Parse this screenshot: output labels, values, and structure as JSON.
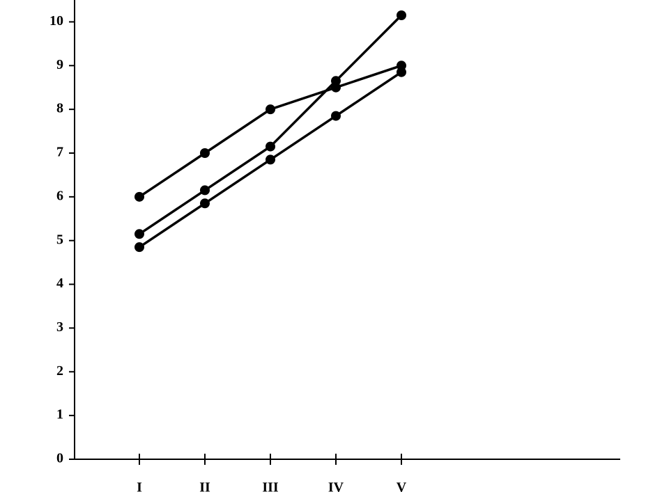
{
  "chart_data": {
    "type": "line",
    "categories": [
      "I",
      "II",
      "III",
      "IV",
      "V"
    ],
    "series": [
      {
        "color": "#000000",
        "values": [
          6,
          7,
          8,
          8.5,
          9
        ]
      },
      {
        "color": "#000000",
        "values": [
          5.15,
          6.15,
          7.15,
          8.65,
          10.15
        ]
      },
      {
        "color": "#000000",
        "values": [
          4.85,
          5.85,
          6.85,
          7.85,
          8.85
        ]
      }
    ],
    "ylim": [
      0,
      10.5
    ],
    "yticks": [
      0,
      1,
      2,
      3,
      4,
      5,
      6,
      7,
      8,
      9,
      10
    ],
    "grid": false
  }
}
